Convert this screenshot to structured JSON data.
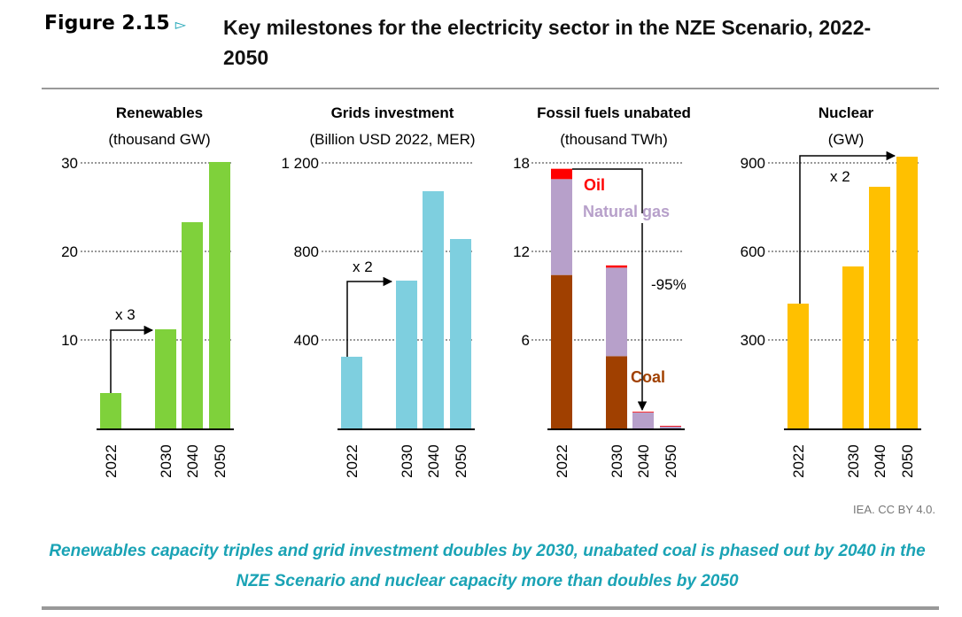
{
  "figure": {
    "label": "Figure 2.15",
    "marker": "▻",
    "title": "Key milestones for the electricity sector in the NZE Scenario, 2022-2050",
    "source": "IEA. CC BY 4.0.",
    "caption": "Renewables capacity triples and grid investment doubles by 2030, unabated coal is phased out by 2040 in the NZE Scenario and nuclear capacity more than doubles by 2050"
  },
  "chart_data": [
    {
      "type": "bar",
      "title": "Renewables",
      "unit": "(thousand GW)",
      "categories": [
        "2022",
        "2030",
        "2040",
        "2050"
      ],
      "values": [
        4.0,
        11.2,
        23.3,
        30.1
      ],
      "ylim": [
        0,
        30
      ],
      "yticks": [
        10,
        20,
        30
      ],
      "ytick_labels": [
        "10",
        "20",
        "30"
      ],
      "color": "#7fd13b",
      "annotation": "x 3",
      "grid": true
    },
    {
      "type": "bar",
      "title": "Grids investment",
      "unit": "(Billion USD 2022, MER)",
      "categories": [
        "2022",
        "2030",
        "2040",
        "2050"
      ],
      "values": [
        324,
        668,
        1072,
        856
      ],
      "ylim": [
        0,
        1200
      ],
      "yticks": [
        400,
        800,
        1200
      ],
      "ytick_labels": [
        "400",
        "800",
        "1 200"
      ],
      "color": "#7ecfdf",
      "annotation": "x 2",
      "grid": true
    },
    {
      "type": "bar",
      "stacked": true,
      "title": "Fossil fuels unabated",
      "unit": "(thousand TWh)",
      "categories": [
        "2022",
        "2030",
        "2040",
        "2050"
      ],
      "series": [
        {
          "name": "Coal",
          "values": [
            10.4,
            4.9,
            0.0,
            0.0
          ],
          "color": "#a04000"
        },
        {
          "name": "Natural gas",
          "values": [
            6.5,
            6.0,
            1.1,
            0.15
          ],
          "color": "#b7a0ca"
        },
        {
          "name": "Oil",
          "values": [
            0.7,
            0.15,
            0.03,
            0.03
          ],
          "color": "#ff0000"
        }
      ],
      "ylim": [
        0,
        18
      ],
      "yticks": [
        6,
        12,
        18
      ],
      "ytick_labels": [
        "6",
        "12",
        "18"
      ],
      "annotation": "-95%",
      "grid": true
    },
    {
      "type": "bar",
      "title": "Nuclear",
      "unit": "(GW)",
      "categories": [
        "2022",
        "2030",
        "2040",
        "2050"
      ],
      "values": [
        423,
        549,
        819,
        921
      ],
      "ylim": [
        0,
        900
      ],
      "yticks": [
        300,
        600,
        900
      ],
      "ytick_labels": [
        "300",
        "600",
        "900"
      ],
      "color": "#ffc000",
      "annotation": "x 2",
      "grid": true
    }
  ]
}
